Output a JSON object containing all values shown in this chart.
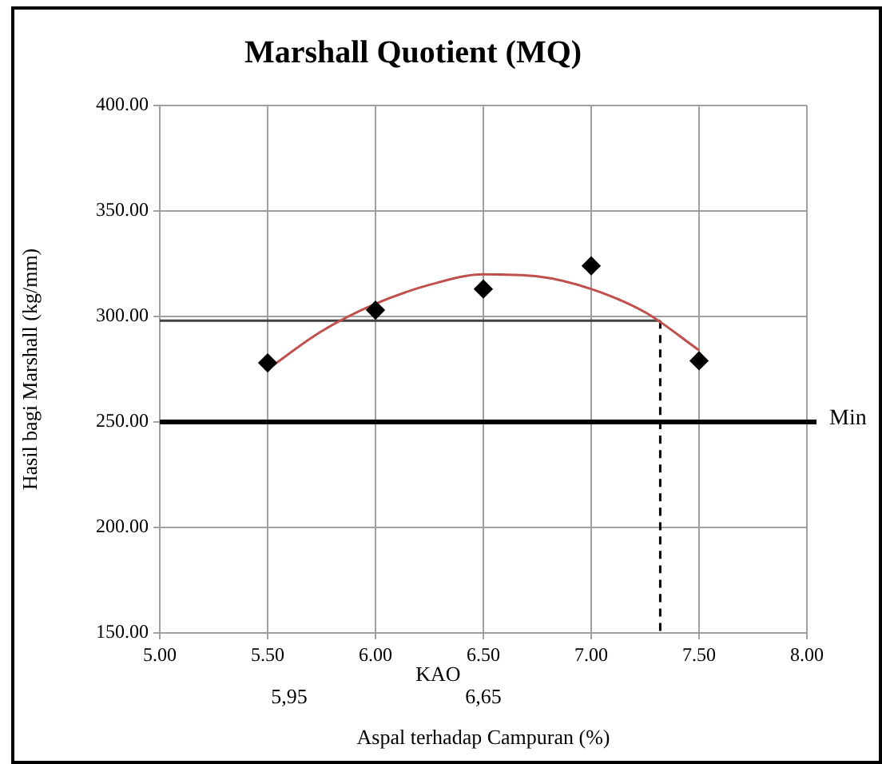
{
  "chart_data": {
    "type": "scatter",
    "title": "Marshall Quotient (MQ)",
    "xlabel": "Aspal terhadap Campuran (%)",
    "ylabel": "Hasil bagi Marshall (kg/mm)",
    "xlim": [
      5,
      8
    ],
    "xticks": [
      {
        "value": 5,
        "label": "5.00"
      },
      {
        "value": 5.5,
        "label": "5.50"
      },
      {
        "value": 6,
        "label": "6.00"
      },
      {
        "value": 6.5,
        "label": "6.50"
      },
      {
        "value": 7,
        "label": "7.00"
      },
      {
        "value": 7.5,
        "label": "7.50"
      },
      {
        "value": 8,
        "label": "8.00"
      }
    ],
    "ylim": [
      150,
      400
    ],
    "yticks": [
      {
        "value": 150,
        "label": "150.00"
      },
      {
        "value": 200,
        "label": "200.00"
      },
      {
        "value": 250,
        "label": "250.00"
      },
      {
        "value": 300,
        "label": "300.00"
      },
      {
        "value": 350,
        "label": "350.00"
      },
      {
        "value": 400,
        "label": "400.00"
      }
    ],
    "grid": true,
    "legend": false,
    "series": [
      {
        "color": "#000000",
        "marker": "diamond",
        "x": [
          5.5,
          6,
          6.5,
          7,
          7.5
        ],
        "values": [
          278,
          303,
          313,
          324,
          279
        ]
      },
      {
        "type": "line",
        "color": "#c0504d",
        "marker": "none",
        "line_style": "solid",
        "x": [
          5.5,
          5.75,
          6,
          6.25,
          6.5,
          6.75,
          7,
          7.25,
          7.5
        ],
        "values": [
          275,
          293,
          306,
          315,
          320,
          319,
          313,
          302,
          284
        ]
      },
      {
        "type": "line",
        "color": "#404040",
        "marker": "none",
        "line_style": "solid",
        "x": [
          5,
          7.32
        ],
        "values": [
          298,
          298
        ]
      },
      {
        "type": "line",
        "color": "#000000",
        "marker": "none",
        "line_style": "dashed",
        "x": [
          7.32,
          7.32
        ],
        "values": [
          298,
          150
        ]
      }
    ],
    "ref_lines": [
      {
        "axis": "y",
        "value": 250,
        "label": "Min",
        "color": "#000000"
      }
    ],
    "annotations": [
      "KAO",
      "5,95",
      "6,65"
    ]
  }
}
